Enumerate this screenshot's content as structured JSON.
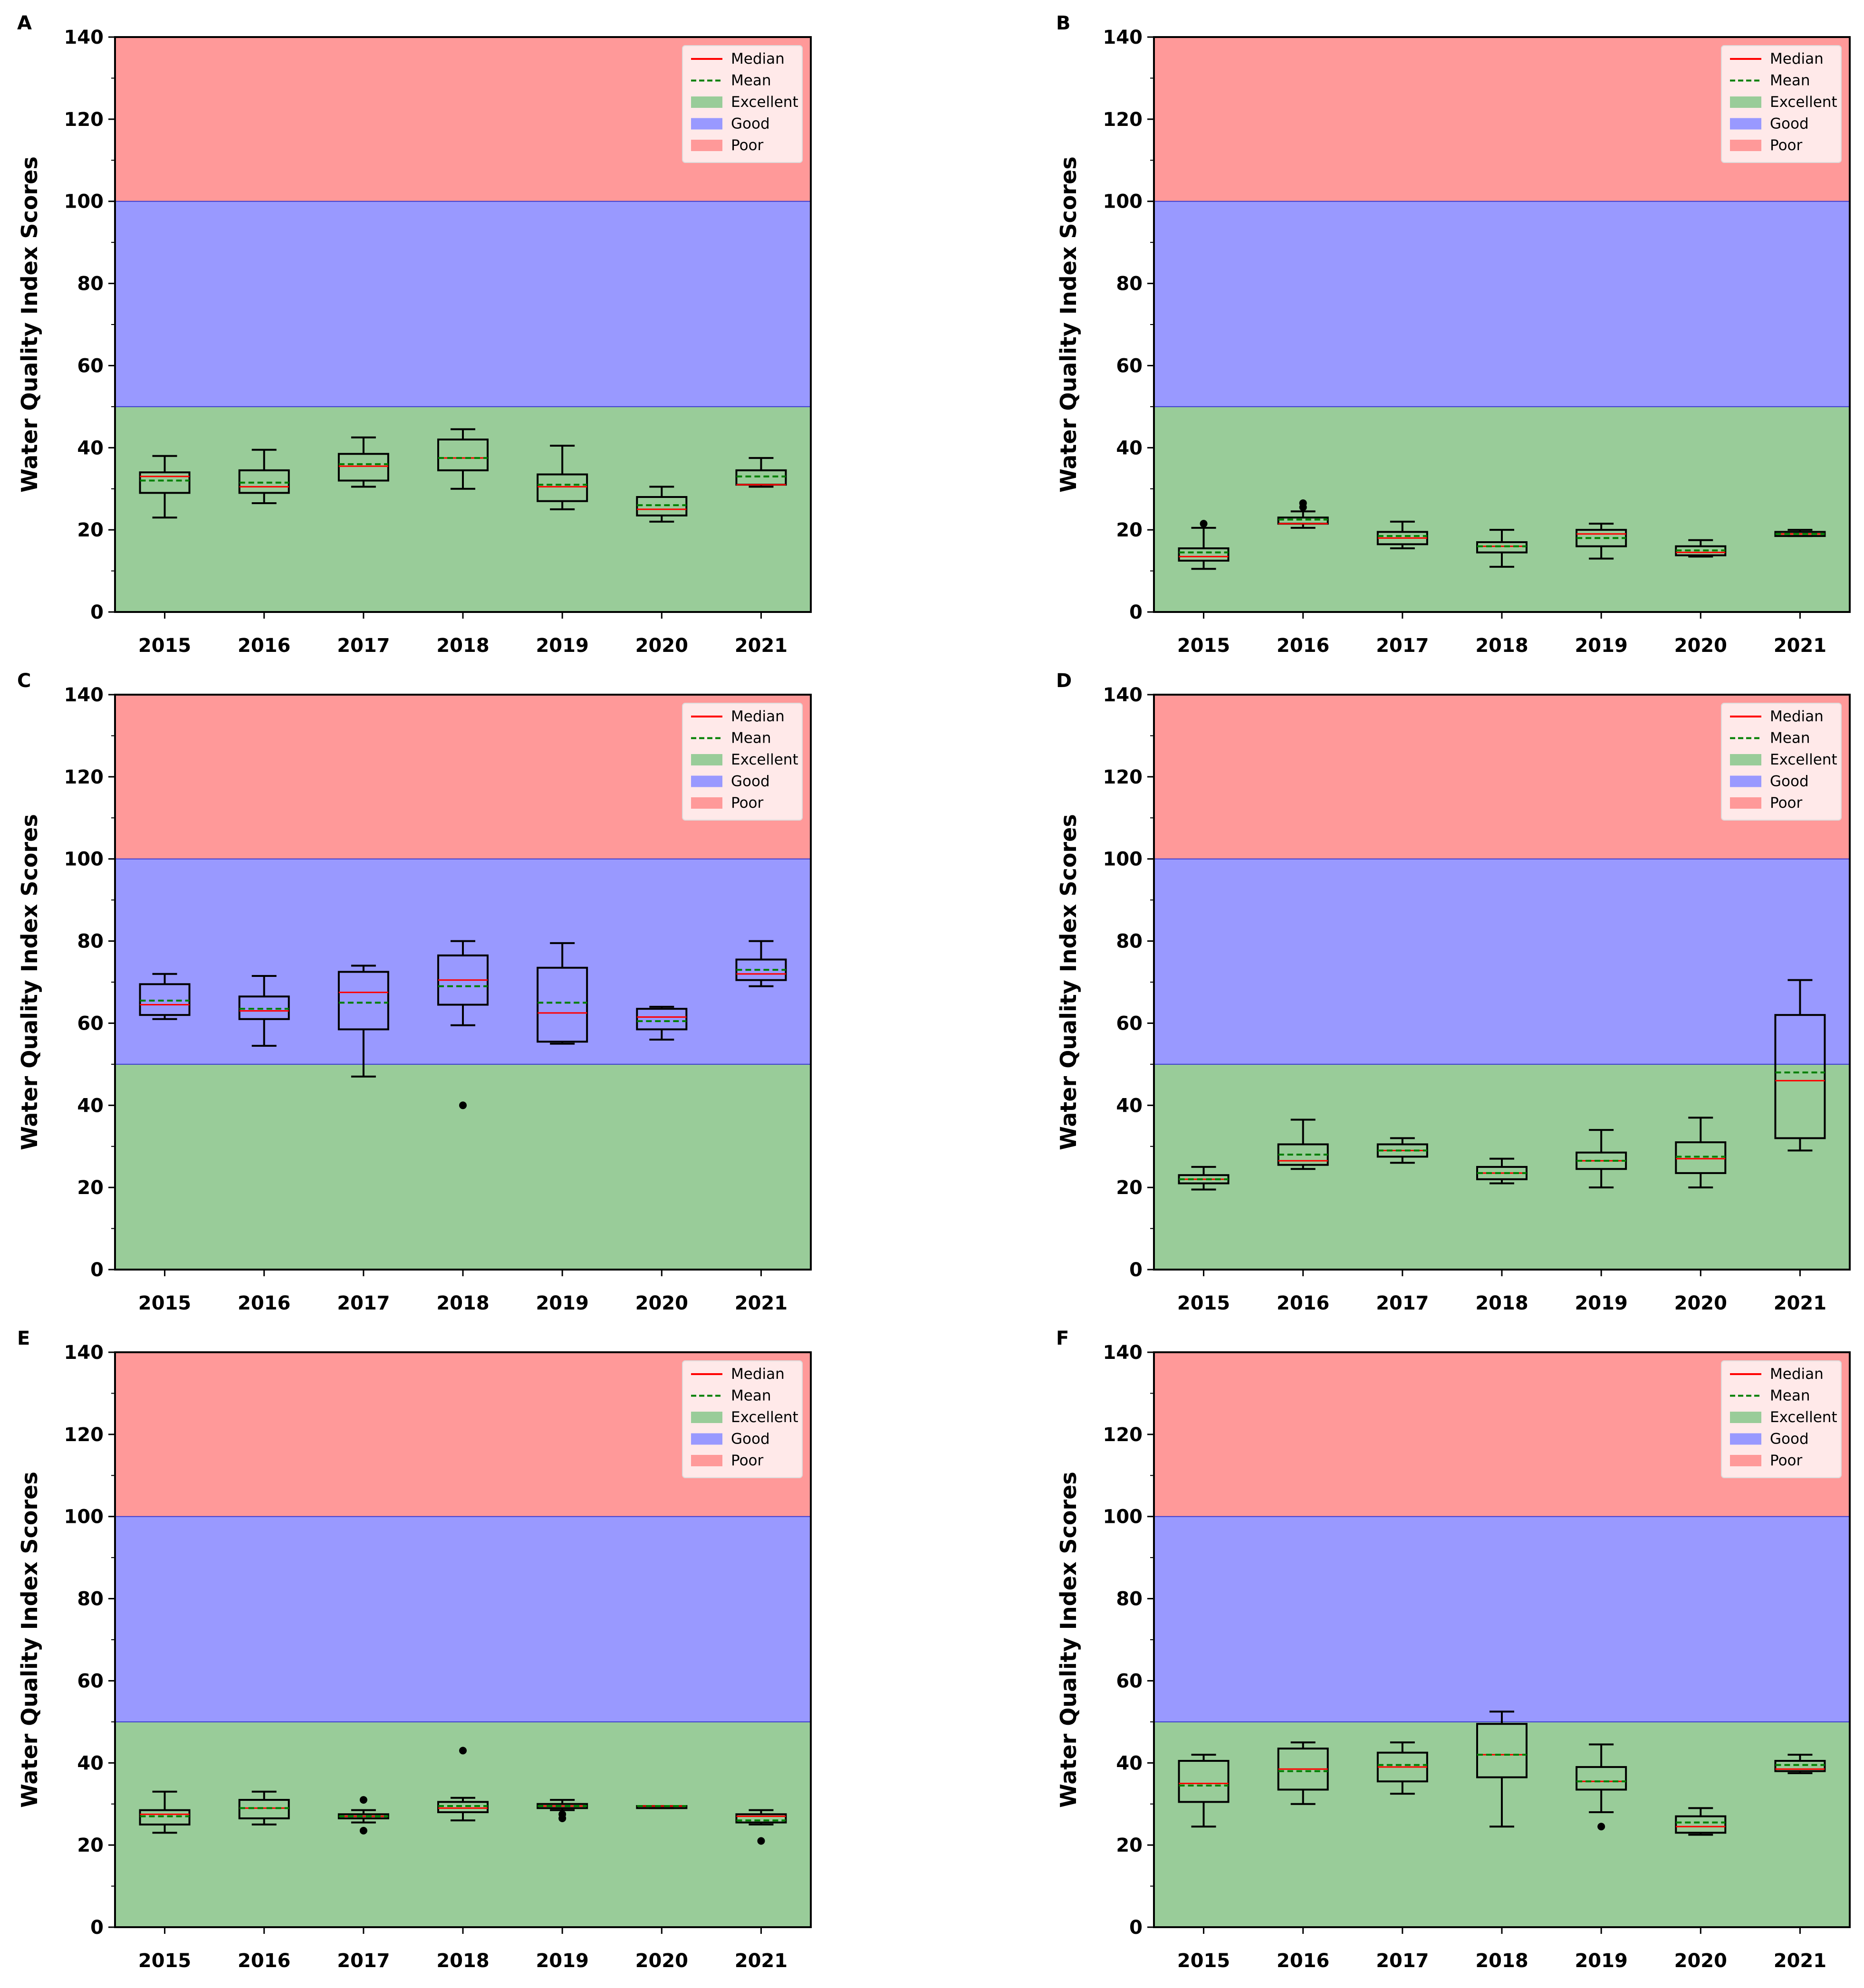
{
  "chart_data": [
    {
      "panel": "A",
      "type": "box",
      "ylabel": "Water Quality Index Scores",
      "ylim": [
        0,
        140
      ],
      "yticks": [
        0,
        20,
        40,
        60,
        80,
        100,
        120,
        140
      ],
      "categories": [
        "2015",
        "2016",
        "2017",
        "2018",
        "2019",
        "2020",
        "2021"
      ],
      "bands": [
        {
          "name": "Excellent",
          "from": 0,
          "to": 50,
          "color": "#99cc99"
        },
        {
          "name": "Good",
          "from": 50,
          "to": 100,
          "color": "#9999ff"
        },
        {
          "name": "Poor",
          "from": 100,
          "to": 140,
          "color": "#ff9999"
        }
      ],
      "legend": {
        "entries": [
          "Median",
          "Mean",
          "Excellent",
          "Good",
          "Poor"
        ],
        "placement": "upper right"
      },
      "boxes": [
        {
          "whislo": 23,
          "q1": 29,
          "med": 33,
          "q3": 34,
          "whishi": 38,
          "mean": 32,
          "fliers": []
        },
        {
          "whislo": 26.5,
          "q1": 29,
          "med": 30.5,
          "q3": 34.5,
          "whishi": 39.5,
          "mean": 31.5,
          "fliers": []
        },
        {
          "whislo": 30.5,
          "q1": 32,
          "med": 35.5,
          "q3": 38.5,
          "whishi": 42.5,
          "mean": 36,
          "fliers": []
        },
        {
          "whislo": 30,
          "q1": 34.5,
          "med": 37.5,
          "q3": 42,
          "whishi": 44.5,
          "mean": 37.5,
          "fliers": []
        },
        {
          "whislo": 25,
          "q1": 27,
          "med": 30.5,
          "q3": 33.5,
          "whishi": 40.5,
          "mean": 31,
          "fliers": []
        },
        {
          "whislo": 22,
          "q1": 23.5,
          "med": 25,
          "q3": 28,
          "whishi": 30.5,
          "mean": 26,
          "fliers": []
        },
        {
          "whislo": 30.5,
          "q1": 31,
          "med": 31,
          "q3": 34.5,
          "whishi": 37.5,
          "mean": 33,
          "fliers": []
        }
      ]
    },
    {
      "panel": "B",
      "type": "box",
      "ylabel": "Water Quality Index Scores",
      "ylim": [
        0,
        140
      ],
      "yticks": [
        0,
        20,
        40,
        60,
        80,
        100,
        120,
        140
      ],
      "categories": [
        "2015",
        "2016",
        "2017",
        "2018",
        "2019",
        "2020",
        "2021"
      ],
      "bands": [
        {
          "name": "Excellent",
          "from": 0,
          "to": 50,
          "color": "#99cc99"
        },
        {
          "name": "Good",
          "from": 50,
          "to": 100,
          "color": "#9999ff"
        },
        {
          "name": "Poor",
          "from": 100,
          "to": 140,
          "color": "#ff9999"
        }
      ],
      "legend": {
        "entries": [
          "Median",
          "Mean",
          "Excellent",
          "Good",
          "Poor"
        ],
        "placement": "upper right"
      },
      "boxes": [
        {
          "whislo": 10.5,
          "q1": 12.5,
          "med": 13.5,
          "q3": 15.5,
          "whishi": 20.5,
          "mean": 14.5,
          "fliers": [
            21.5
          ]
        },
        {
          "whislo": 20.5,
          "q1": 21.5,
          "med": 21.5,
          "q3": 23,
          "whishi": 24.5,
          "mean": 22.5,
          "fliers": [
            25.5,
            26.5
          ]
        },
        {
          "whislo": 15.5,
          "q1": 16.5,
          "med": 18,
          "q3": 19.5,
          "whishi": 22,
          "mean": 18.5,
          "fliers": []
        },
        {
          "whislo": 11,
          "q1": 14.5,
          "med": 16,
          "q3": 17,
          "whishi": 20,
          "mean": 16,
          "fliers": []
        },
        {
          "whislo": 13,
          "q1": 16,
          "med": 19,
          "q3": 20,
          "whishi": 21.5,
          "mean": 18,
          "fliers": []
        },
        {
          "whislo": 13.5,
          "q1": 13.8,
          "med": 14.5,
          "q3": 16,
          "whishi": 17.5,
          "mean": 15,
          "fliers": []
        },
        {
          "whislo": 18.5,
          "q1": 18.5,
          "med": 19,
          "q3": 19.5,
          "whishi": 20,
          "mean": 19,
          "fliers": []
        }
      ]
    },
    {
      "panel": "C",
      "type": "box",
      "ylabel": "Water Quality Index Scores",
      "ylim": [
        0,
        140
      ],
      "yticks": [
        0,
        20,
        40,
        60,
        80,
        100,
        120,
        140
      ],
      "categories": [
        "2015",
        "2016",
        "2017",
        "2018",
        "2019",
        "2020",
        "2021"
      ],
      "bands": [
        {
          "name": "Excellent",
          "from": 0,
          "to": 50,
          "color": "#99cc99"
        },
        {
          "name": "Good",
          "from": 50,
          "to": 100,
          "color": "#9999ff"
        },
        {
          "name": "Poor",
          "from": 100,
          "to": 140,
          "color": "#ff9999"
        }
      ],
      "legend": {
        "entries": [
          "Median",
          "Mean",
          "Excellent",
          "Good",
          "Poor"
        ],
        "placement": "upper right"
      },
      "boxes": [
        {
          "whislo": 61,
          "q1": 62,
          "med": 64.5,
          "q3": 69.5,
          "whishi": 72,
          "mean": 65.5,
          "fliers": []
        },
        {
          "whislo": 54.5,
          "q1": 61,
          "med": 63,
          "q3": 66.5,
          "whishi": 71.5,
          "mean": 63.5,
          "fliers": []
        },
        {
          "whislo": 47,
          "q1": 58.5,
          "med": 67.5,
          "q3": 72.5,
          "whishi": 74,
          "mean": 65,
          "fliers": []
        },
        {
          "whislo": 59.5,
          "q1": 64.5,
          "med": 70.5,
          "q3": 76.5,
          "whishi": 80,
          "mean": 69,
          "fliers": [
            40
          ]
        },
        {
          "whislo": 55,
          "q1": 55.5,
          "med": 62.5,
          "q3": 73.5,
          "whishi": 79.5,
          "mean": 65,
          "fliers": []
        },
        {
          "whislo": 56,
          "q1": 58.5,
          "med": 61.5,
          "q3": 63.5,
          "whishi": 64,
          "mean": 60.5,
          "fliers": []
        },
        {
          "whislo": 69,
          "q1": 70.5,
          "med": 72,
          "q3": 75.5,
          "whishi": 80,
          "mean": 73,
          "fliers": []
        }
      ]
    },
    {
      "panel": "D",
      "type": "box",
      "ylabel": "Water Quality Index Scores",
      "ylim": [
        0,
        140
      ],
      "yticks": [
        0,
        20,
        40,
        60,
        80,
        100,
        120,
        140
      ],
      "categories": [
        "2015",
        "2016",
        "2017",
        "2018",
        "2019",
        "2020",
        "2021"
      ],
      "bands": [
        {
          "name": "Excellent",
          "from": 0,
          "to": 50,
          "color": "#99cc99"
        },
        {
          "name": "Good",
          "from": 50,
          "to": 100,
          "color": "#9999ff"
        },
        {
          "name": "Poor",
          "from": 100,
          "to": 140,
          "color": "#ff9999"
        }
      ],
      "legend": {
        "entries": [
          "Median",
          "Mean",
          "Excellent",
          "Good",
          "Poor"
        ],
        "placement": "upper right"
      },
      "boxes": [
        {
          "whislo": 19.5,
          "q1": 21,
          "med": 22,
          "q3": 23,
          "whishi": 25,
          "mean": 22,
          "fliers": []
        },
        {
          "whislo": 24.5,
          "q1": 25.5,
          "med": 26.5,
          "q3": 30.5,
          "whishi": 36.5,
          "mean": 28,
          "fliers": []
        },
        {
          "whislo": 26,
          "q1": 27.5,
          "med": 29,
          "q3": 30.5,
          "whishi": 32,
          "mean": 29,
          "fliers": []
        },
        {
          "whislo": 21,
          "q1": 22,
          "med": 23.5,
          "q3": 25,
          "whishi": 27,
          "mean": 23.5,
          "fliers": []
        },
        {
          "whislo": 20,
          "q1": 24.5,
          "med": 26.5,
          "q3": 28.5,
          "whishi": 34,
          "mean": 26.5,
          "fliers": []
        },
        {
          "whislo": 20,
          "q1": 23.5,
          "med": 27,
          "q3": 31,
          "whishi": 37,
          "mean": 27.5,
          "fliers": []
        },
        {
          "whislo": 29,
          "q1": 32,
          "med": 46,
          "q3": 62,
          "whishi": 70.5,
          "mean": 48,
          "fliers": []
        }
      ]
    },
    {
      "panel": "E",
      "type": "box",
      "ylabel": "Water Quality Index Scores",
      "ylim": [
        0,
        140
      ],
      "yticks": [
        0,
        20,
        40,
        60,
        80,
        100,
        120,
        140
      ],
      "categories": [
        "2015",
        "2016",
        "2017",
        "2018",
        "2019",
        "2020",
        "2021"
      ],
      "bands": [
        {
          "name": "Excellent",
          "from": 0,
          "to": 50,
          "color": "#99cc99"
        },
        {
          "name": "Good",
          "from": 50,
          "to": 100,
          "color": "#9999ff"
        },
        {
          "name": "Poor",
          "from": 100,
          "to": 140,
          "color": "#ff9999"
        }
      ],
      "legend": {
        "entries": [
          "Median",
          "Mean",
          "Excellent",
          "Good",
          "Poor"
        ],
        "placement": "upper right"
      },
      "boxes": [
        {
          "whislo": 23,
          "q1": 25,
          "med": 27.5,
          "q3": 28.5,
          "whishi": 33,
          "mean": 27,
          "fliers": []
        },
        {
          "whislo": 25,
          "q1": 26.5,
          "med": 29,
          "q3": 31,
          "whishi": 33,
          "mean": 29,
          "fliers": []
        },
        {
          "whislo": 25.5,
          "q1": 26.5,
          "med": 27,
          "q3": 27.5,
          "whishi": 28.5,
          "mean": 27,
          "fliers": [
            31,
            23.5
          ]
        },
        {
          "whislo": 26,
          "q1": 28,
          "med": 29,
          "q3": 30.5,
          "whishi": 31.5,
          "mean": 29.5,
          "fliers": [
            43
          ]
        },
        {
          "whislo": 28.5,
          "q1": 29,
          "med": 29.5,
          "q3": 30,
          "whishi": 31,
          "mean": 29.5,
          "fliers": [
            27.5,
            26.5
          ]
        },
        {
          "whislo": 29,
          "q1": 29,
          "med": 29.5,
          "q3": 29.5,
          "whishi": 29.5,
          "mean": 29.5,
          "fliers": []
        },
        {
          "whislo": 25,
          "q1": 25.5,
          "med": 27,
          "q3": 27.5,
          "whishi": 28.5,
          "mean": 26,
          "fliers": [
            21
          ]
        }
      ]
    },
    {
      "panel": "F",
      "type": "box",
      "ylabel": "Water Quality Index Scores",
      "ylim": [
        0,
        140
      ],
      "yticks": [
        0,
        20,
        40,
        60,
        80,
        100,
        120,
        140
      ],
      "categories": [
        "2015",
        "2016",
        "2017",
        "2018",
        "2019",
        "2020",
        "2021"
      ],
      "bands": [
        {
          "name": "Excellent",
          "from": 0,
          "to": 50,
          "color": "#99cc99"
        },
        {
          "name": "Good",
          "from": 50,
          "to": 100,
          "color": "#9999ff"
        },
        {
          "name": "Poor",
          "from": 100,
          "to": 140,
          "color": "#ff9999"
        }
      ],
      "legend": {
        "entries": [
          "Median",
          "Mean",
          "Excellent",
          "Good",
          "Poor"
        ],
        "placement": "upper right"
      },
      "boxes": [
        {
          "whislo": 24.5,
          "q1": 30.5,
          "med": 35,
          "q3": 40.5,
          "whishi": 42,
          "mean": 34.5,
          "fliers": []
        },
        {
          "whislo": 30,
          "q1": 33.5,
          "med": 38.5,
          "q3": 43.5,
          "whishi": 45,
          "mean": 38,
          "fliers": []
        },
        {
          "whislo": 32.5,
          "q1": 35.5,
          "med": 39,
          "q3": 42.5,
          "whishi": 45,
          "mean": 39.5,
          "fliers": []
        },
        {
          "whislo": 24.5,
          "q1": 36.5,
          "med": 42,
          "q3": 49.5,
          "whishi": 52.5,
          "mean": 42,
          "fliers": []
        },
        {
          "whislo": 28,
          "q1": 33.5,
          "med": 35.5,
          "q3": 39,
          "whishi": 44.5,
          "mean": 35.5,
          "fliers": [
            24.5
          ]
        },
        {
          "whislo": 22.5,
          "q1": 23,
          "med": 24.5,
          "q3": 27,
          "whishi": 29,
          "mean": 25.5,
          "fliers": []
        },
        {
          "whislo": 37.5,
          "q1": 38,
          "med": 38.5,
          "q3": 40.5,
          "whishi": 42,
          "mean": 39.5,
          "fliers": []
        }
      ]
    }
  ]
}
